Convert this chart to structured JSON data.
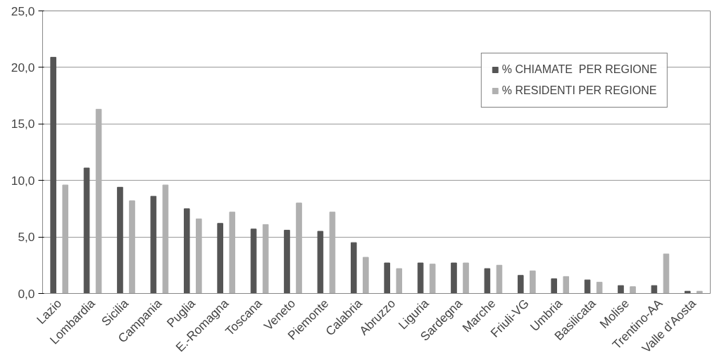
{
  "chart_data": {
    "type": "bar",
    "categories": [
      "Lazio",
      "Lombardia",
      "Sicilia",
      "Campania",
      "Puglia",
      "E.-Romagna",
      "Toscana",
      "Veneto",
      "Piemonte",
      "Calabria",
      "Abruzzo",
      "Liguria",
      "Sardegna",
      "Marche",
      "Friuli-VG",
      "Umbria",
      "Basilicata",
      "Molise",
      "Trentino-AA",
      "Valle d'Aosta"
    ],
    "series": [
      {
        "name": "% CHIAMATE  PER REGIONE",
        "color": "#555555",
        "values": [
          20.9,
          11.1,
          9.4,
          8.6,
          7.5,
          6.2,
          5.7,
          5.6,
          5.5,
          4.5,
          2.7,
          2.7,
          2.7,
          2.2,
          1.6,
          1.3,
          1.2,
          0.7,
          0.7,
          0.2
        ]
      },
      {
        "name": "% RESIDENTI PER REGIONE",
        "color": "#b0b0b0",
        "values": [
          9.6,
          16.3,
          8.2,
          9.6,
          6.6,
          7.2,
          6.1,
          8.0,
          7.2,
          3.2,
          2.2,
          2.6,
          2.7,
          2.5,
          2.0,
          1.5,
          1.0,
          0.6,
          3.5,
          0.2
        ]
      }
    ],
    "ylim": [
      0,
      25
    ],
    "yticks": [
      {
        "value": 0,
        "label": "0,0"
      },
      {
        "value": 5,
        "label": "5,0"
      },
      {
        "value": 10,
        "label": "10,0"
      },
      {
        "value": 15,
        "label": "15,0"
      },
      {
        "value": 20,
        "label": "20,0"
      },
      {
        "value": 25,
        "label": "25,0"
      }
    ],
    "grid": "y",
    "legend": "top right"
  }
}
